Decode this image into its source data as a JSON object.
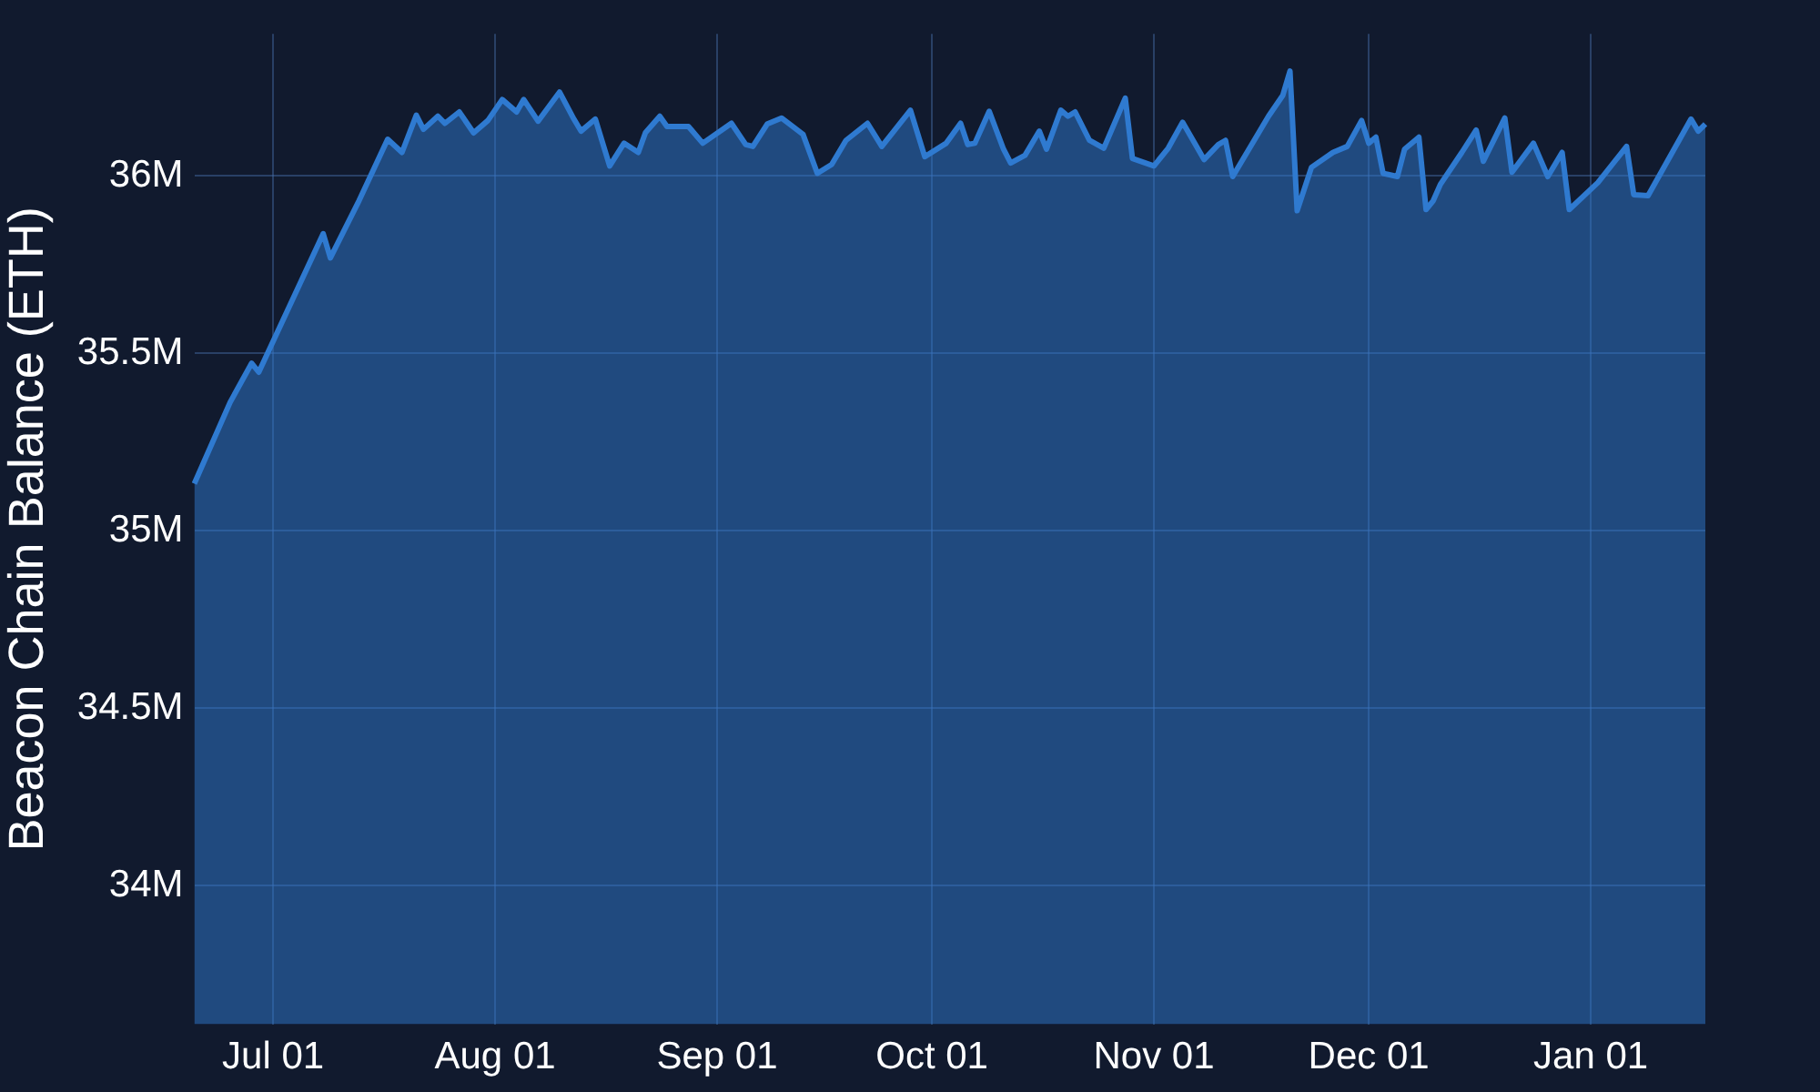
{
  "chart_data": {
    "type": "area",
    "ylabel": "Beacon Chain Balance (ETH)",
    "grid": true,
    "legend": false,
    "categories": [
      null,
      null,
      null,
      null,
      null,
      null,
      null,
      null,
      null,
      null,
      null,
      "Jul 01",
      null,
      null,
      null,
      null,
      null,
      null,
      null,
      null,
      null,
      null,
      null,
      null,
      null,
      null,
      null,
      null,
      null,
      null,
      null,
      null,
      null,
      null,
      null,
      null,
      null,
      null,
      null,
      null,
      null,
      null,
      "Aug 01",
      null,
      null,
      null,
      null,
      null,
      null,
      null,
      null,
      null,
      null,
      null,
      null,
      null,
      null,
      null,
      null,
      null,
      null,
      null,
      null,
      null,
      null,
      null,
      null,
      null,
      null,
      null,
      null,
      null,
      null,
      "Sep 01",
      null,
      null,
      null,
      null,
      null,
      null,
      null,
      null,
      null,
      null,
      null,
      null,
      null,
      null,
      null,
      null,
      null,
      null,
      null,
      null,
      null,
      null,
      null,
      null,
      null,
      null,
      null,
      null,
      null,
      "Oct 01",
      null,
      null,
      null,
      null,
      null,
      null,
      null,
      null,
      null,
      null,
      null,
      null,
      null,
      null,
      null,
      null,
      null,
      null,
      null,
      null,
      null,
      null,
      null,
      null,
      null,
      null,
      null,
      null,
      null,
      null,
      "Nov 01",
      null,
      null,
      null,
      null,
      null,
      null,
      null,
      null,
      null,
      null,
      null,
      null,
      null,
      null,
      null,
      null,
      null,
      null,
      null,
      null,
      null,
      null,
      null,
      null,
      null,
      null,
      null,
      null,
      null,
      "Dec 01",
      null,
      null,
      null,
      null,
      null,
      null,
      null,
      null,
      null,
      null,
      null,
      null,
      null,
      null,
      null,
      null,
      null,
      null,
      null,
      null,
      null,
      null,
      null,
      null,
      null,
      null,
      null,
      null,
      null,
      null,
      "Jan 01",
      null,
      null,
      null,
      null,
      null,
      null,
      null,
      null,
      null,
      null,
      null,
      null,
      null,
      null,
      null,
      null
    ],
    "ylim": [
      33610000,
      36400000
    ],
    "yticks": [
      {
        "value": 34000000,
        "label": "34M"
      },
      {
        "value": 34500000,
        "label": "34.5M"
      },
      {
        "value": 35000000,
        "label": "35M"
      },
      {
        "value": 35500000,
        "label": "35.5M"
      },
      {
        "value": 36000000,
        "label": "36M"
      }
    ],
    "series": [
      {
        "color": "#2f7ad0",
        "values": [
          35133000,
          null,
          null,
          null,
          null,
          35362000,
          null,
          null,
          35472000,
          35447000,
          null,
          null,
          null,
          null,
          null,
          null,
          null,
          null,
          35837000,
          35769000,
          null,
          null,
          null,
          35930000,
          null,
          null,
          null,
          36103000,
          null,
          36066000,
          null,
          36171000,
          36131000,
          null,
          36168000,
          36148000,
          null,
          36180000,
          null,
          36121000,
          null,
          36156000,
          null,
          36215000,
          null,
          36180000,
          36215000,
          null,
          36154000,
          null,
          null,
          36236000,
          null,
          36160000,
          36126000,
          null,
          36160000,
          null,
          36028000,
          null,
          36092000,
          null,
          36066000,
          36122000,
          null,
          36168000,
          36139000,
          null,
          null,
          36139000,
          null,
          36092000,
          null,
          null,
          36134000,
          36148000,
          null,
          36088000,
          36083000,
          null,
          36146000,
          null,
          36163000,
          null,
          null,
          36117000,
          null,
          36007000,
          null,
          36032000,
          null,
          36100000,
          null,
          null,
          36148000,
          null,
          36083000,
          null,
          null,
          null,
          36185000,
          null,
          36054000,
          null,
          null,
          36092000,
          null,
          36148000,
          36088000,
          36092000,
          null,
          36182000,
          null,
          36075000,
          36036000,
          null,
          36058000,
          null,
          36126000,
          36075000,
          null,
          36185000,
          36168000,
          36180000,
          null,
          36100000,
          null,
          36078000,
          null,
          null,
          36219000,
          36049000,
          null,
          null,
          36028000,
          null,
          36078000,
          null,
          36151000,
          null,
          null,
          36046000,
          null,
          36088000,
          36100000,
          35998000,
          null,
          null,
          null,
          null,
          36168000,
          null,
          36227000,
          36295000,
          35902000,
          null,
          36024000,
          null,
          null,
          36066000,
          null,
          36083000,
          null,
          36156000,
          36092000,
          36109000,
          36007000,
          null,
          35998000,
          36075000,
          null,
          36109000,
          35905000,
          35930000,
          35976000,
          null,
          null,
          36066000,
          null,
          36129000,
          36041000,
          null,
          null,
          36163000,
          36010000,
          null,
          null,
          36092000,
          null,
          35998000,
          null,
          36066000,
          35905000,
          null,
          null,
          null,
          35981000,
          null,
          null,
          null,
          36083000,
          35947000,
          null,
          35944000,
          null,
          null,
          null,
          null,
          null,
          36160000,
          36126000,
          36146000
        ]
      }
    ]
  }
}
